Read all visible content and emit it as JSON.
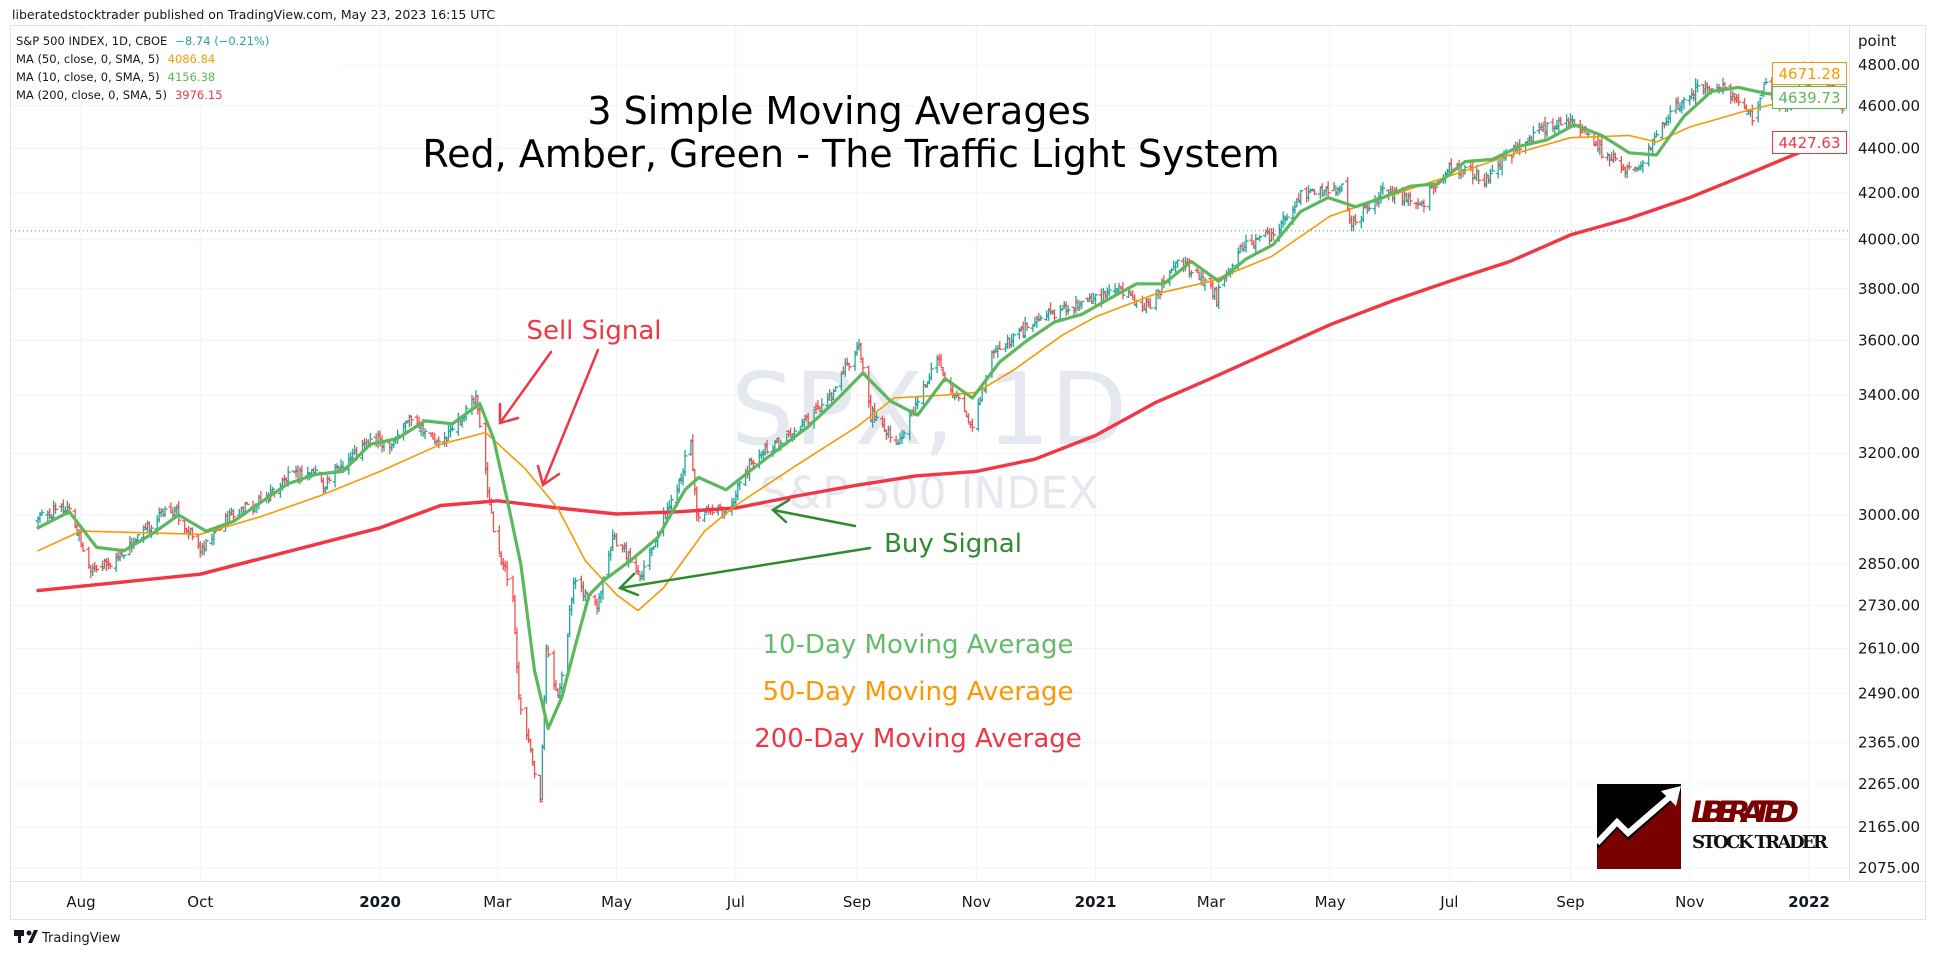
{
  "header": {
    "published": "liberatedstocktrader published on TradingView.com, May 23, 2023 16:15 UTC"
  },
  "legend": [
    {
      "label": "S&P 500 INDEX, 1D, CBOE",
      "value": "−8.74 (−0.21%)",
      "color": "#26a69a"
    },
    {
      "label": "MA (50, close, 0, SMA, 5)",
      "value": "4086.84",
      "color": "#ff9800"
    },
    {
      "label": "MA (10, close, 0, SMA, 5)",
      "value": "4156.38",
      "color": "#5cb85c"
    },
    {
      "label": "MA (200, close, 0, SMA, 5)",
      "value": "3976.15",
      "color": "#f23645"
    }
  ],
  "watermark": {
    "symbol": "SPX, 1D",
    "name": "S&P 500 INDEX"
  },
  "footer": {
    "brand": "TradingView"
  },
  "logo": {
    "line1": "LIBERATED",
    "line2": "STOCK TRADER"
  },
  "price_axis": {
    "unit": "point"
  },
  "price_tags": [
    {
      "value": "4671.28",
      "color": "#ff9800"
    },
    {
      "value": "4639.73",
      "color": "#5cb85c"
    },
    {
      "value": "4427.63",
      "color": "#f23645"
    }
  ],
  "chart_data": {
    "type": "ohlc",
    "title": [
      "3 Simple Moving Averages",
      "Red, Amber, Green - The Traffic Light System"
    ],
    "y_scale": "log",
    "ylim": [
      2030,
      4900
    ],
    "grid": true,
    "y_ticks": [
      4800,
      4600,
      4400,
      4200,
      4000,
      3800,
      3600,
      3400,
      3200,
      3000,
      2850,
      2730,
      2610,
      2490,
      2365,
      2265,
      2165,
      2075
    ],
    "y_tick_labels": [
      "4800.00",
      "4600.00",
      "4400.00",
      "4200.00",
      "4000.00",
      "3800.00",
      "3600.00",
      "3400.00",
      "3200.00",
      "3000.00",
      "2850.00",
      "2730.00",
      "2610.00",
      "2490.00",
      "2365.00",
      "2265.00",
      "2165.00",
      "2075.00"
    ],
    "x_range": [
      "2019-07-10",
      "2022-01-18"
    ],
    "x_ticks": [
      {
        "date": "2019-08-01",
        "label": "Aug",
        "year": false
      },
      {
        "date": "2019-10-01",
        "label": "Oct",
        "year": false
      },
      {
        "date": "2020-01-01",
        "label": "2020",
        "year": true
      },
      {
        "date": "2020-03-01",
        "label": "Mar",
        "year": false
      },
      {
        "date": "2020-05-01",
        "label": "May",
        "year": false
      },
      {
        "date": "2020-07-01",
        "label": "Jul",
        "year": false
      },
      {
        "date": "2020-09-01",
        "label": "Sep",
        "year": false
      },
      {
        "date": "2020-11-01",
        "label": "Nov",
        "year": false
      },
      {
        "date": "2021-01-01",
        "label": "2021",
        "year": true
      },
      {
        "date": "2021-03-01",
        "label": "Mar",
        "year": false
      },
      {
        "date": "2021-05-01",
        "label": "May",
        "year": false
      },
      {
        "date": "2021-07-01",
        "label": "Jul",
        "year": false
      },
      {
        "date": "2021-09-01",
        "label": "Sep",
        "year": false
      },
      {
        "date": "2021-11-01",
        "label": "Nov",
        "year": false
      },
      {
        "date": "2022-01-01",
        "label": "2022",
        "year": true
      }
    ],
    "close": [
      [
        "2019-07-10",
        2993
      ],
      [
        "2019-07-26",
        3025
      ],
      [
        "2019-08-05",
        2844
      ],
      [
        "2019-08-15",
        2847
      ],
      [
        "2019-08-30",
        2926
      ],
      [
        "2019-09-12",
        3009
      ],
      [
        "2019-09-19",
        3006
      ],
      [
        "2019-10-02",
        2887
      ],
      [
        "2019-10-15",
        2995
      ],
      [
        "2019-10-31",
        3037
      ],
      [
        "2019-11-15",
        3120
      ],
      [
        "2019-11-29",
        3141
      ],
      [
        "2019-12-03",
        3093
      ],
      [
        "2019-12-13",
        3169
      ],
      [
        "2019-12-27",
        3240
      ],
      [
        "2020-01-07",
        3237
      ],
      [
        "2020-01-17",
        3330
      ],
      [
        "2020-01-31",
        3225
      ],
      [
        "2020-02-19",
        3386
      ],
      [
        "2020-02-28",
        2954
      ],
      [
        "2020-03-09",
        2746
      ],
      [
        "2020-03-12",
        2480
      ],
      [
        "2020-03-16",
        2386
      ],
      [
        "2020-03-23",
        2237
      ],
      [
        "2020-03-26",
        2630
      ],
      [
        "2020-04-01",
        2470
      ],
      [
        "2020-04-09",
        2790
      ],
      [
        "2020-04-21",
        2736
      ],
      [
        "2020-04-29",
        2939
      ],
      [
        "2020-05-13",
        2820
      ],
      [
        "2020-05-29",
        3044
      ],
      [
        "2020-06-08",
        3232
      ],
      [
        "2020-06-11",
        3002
      ],
      [
        "2020-06-26",
        3009
      ],
      [
        "2020-07-10",
        3185
      ],
      [
        "2020-07-31",
        3271
      ],
      [
        "2020-08-18",
        3389
      ],
      [
        "2020-09-02",
        3580
      ],
      [
        "2020-09-08",
        3332
      ],
      [
        "2020-09-23",
        3237
      ],
      [
        "2020-10-12",
        3534
      ],
      [
        "2020-10-30",
        3270
      ],
      [
        "2020-11-09",
        3550
      ],
      [
        "2020-11-24",
        3635
      ],
      [
        "2020-12-08",
        3702
      ],
      [
        "2020-12-31",
        3756
      ],
      [
        "2021-01-14",
        3795
      ],
      [
        "2021-01-29",
        3714
      ],
      [
        "2021-02-12",
        3934
      ],
      [
        "2021-03-04",
        3768
      ],
      [
        "2021-03-17",
        3974
      ],
      [
        "2021-04-01",
        4019
      ],
      [
        "2021-04-16",
        4185
      ],
      [
        "2021-05-07",
        4232
      ],
      [
        "2021-05-12",
        4063
      ],
      [
        "2021-05-28",
        4204
      ],
      [
        "2021-06-18",
        4166
      ],
      [
        "2021-07-01",
        4320
      ],
      [
        "2021-07-19",
        4258
      ],
      [
        "2021-08-02",
        4387
      ],
      [
        "2021-08-16",
        4479
      ],
      [
        "2021-09-02",
        4537
      ],
      [
        "2021-09-20",
        4358
      ],
      [
        "2021-10-04",
        4300
      ],
      [
        "2021-10-21",
        4549
      ],
      [
        "2021-11-05",
        4697
      ],
      [
        "2021-11-18",
        4704
      ],
      [
        "2021-11-30",
        4567
      ],
      [
        "2021-12-03",
        4538
      ],
      [
        "2021-12-10",
        4712
      ],
      [
        "2021-12-20",
        4568
      ],
      [
        "2021-12-29",
        4793
      ],
      [
        "2022-01-03",
        4796
      ],
      [
        "2022-01-12",
        4726
      ],
      [
        "2022-01-18",
        4577
      ]
    ],
    "series": [
      {
        "name": "MA (10, close, 0, SMA, 5)",
        "color": "#5cb85c",
        "points": [
          [
            "2019-07-10",
            2960
          ],
          [
            "2019-07-26",
            3010
          ],
          [
            "2019-08-09",
            2900
          ],
          [
            "2019-08-23",
            2890
          ],
          [
            "2019-09-06",
            2940
          ],
          [
            "2019-09-20",
            3000
          ],
          [
            "2019-10-04",
            2950
          ],
          [
            "2019-10-18",
            2980
          ],
          [
            "2019-11-01",
            3040
          ],
          [
            "2019-11-15",
            3100
          ],
          [
            "2019-11-29",
            3130
          ],
          [
            "2019-12-13",
            3140
          ],
          [
            "2019-12-27",
            3230
          ],
          [
            "2020-01-10",
            3250
          ],
          [
            "2020-01-24",
            3310
          ],
          [
            "2020-02-07",
            3300
          ],
          [
            "2020-02-21",
            3370
          ],
          [
            "2020-02-28",
            3250
          ],
          [
            "2020-03-06",
            3050
          ],
          [
            "2020-03-13",
            2850
          ],
          [
            "2020-03-20",
            2550
          ],
          [
            "2020-03-27",
            2400
          ],
          [
            "2020-04-03",
            2480
          ],
          [
            "2020-04-10",
            2620
          ],
          [
            "2020-04-17",
            2760
          ],
          [
            "2020-04-24",
            2800
          ],
          [
            "2020-05-08",
            2860
          ],
          [
            "2020-05-22",
            2930
          ],
          [
            "2020-06-05",
            3080
          ],
          [
            "2020-06-12",
            3120
          ],
          [
            "2020-06-26",
            3080
          ],
          [
            "2020-07-10",
            3150
          ],
          [
            "2020-07-24",
            3220
          ],
          [
            "2020-08-07",
            3290
          ],
          [
            "2020-08-21",
            3380
          ],
          [
            "2020-09-04",
            3480
          ],
          [
            "2020-09-18",
            3380
          ],
          [
            "2020-10-02",
            3330
          ],
          [
            "2020-10-16",
            3460
          ],
          [
            "2020-10-30",
            3390
          ],
          [
            "2020-11-13",
            3520
          ],
          [
            "2020-11-27",
            3600
          ],
          [
            "2020-12-11",
            3670
          ],
          [
            "2020-12-25",
            3700
          ],
          [
            "2021-01-08",
            3760
          ],
          [
            "2021-01-22",
            3820
          ],
          [
            "2021-02-05",
            3820
          ],
          [
            "2021-02-19",
            3910
          ],
          [
            "2021-03-05",
            3830
          ],
          [
            "2021-03-19",
            3920
          ],
          [
            "2021-04-02",
            3980
          ],
          [
            "2021-04-16",
            4120
          ],
          [
            "2021-04-30",
            4180
          ],
          [
            "2021-05-14",
            4140
          ],
          [
            "2021-05-28",
            4180
          ],
          [
            "2021-06-11",
            4230
          ],
          [
            "2021-06-25",
            4240
          ],
          [
            "2021-07-09",
            4340
          ],
          [
            "2021-07-23",
            4350
          ],
          [
            "2021-08-06",
            4410
          ],
          [
            "2021-08-20",
            4440
          ],
          [
            "2021-09-03",
            4510
          ],
          [
            "2021-09-17",
            4460
          ],
          [
            "2021-10-01",
            4380
          ],
          [
            "2021-10-15",
            4370
          ],
          [
            "2021-10-29",
            4550
          ],
          [
            "2021-11-12",
            4670
          ],
          [
            "2021-11-26",
            4690
          ],
          [
            "2021-12-10",
            4660
          ],
          [
            "2021-12-24",
            4650
          ],
          [
            "2022-01-07",
            4740
          ],
          [
            "2022-01-18",
            4640
          ]
        ]
      },
      {
        "name": "MA (50, close, 0, SMA, 5)",
        "color": "#ff9800",
        "points": [
          [
            "2019-07-10",
            2890
          ],
          [
            "2019-08-01",
            2950
          ],
          [
            "2019-09-01",
            2945
          ],
          [
            "2019-10-01",
            2940
          ],
          [
            "2019-11-01",
            2995
          ],
          [
            "2019-12-01",
            3060
          ],
          [
            "2020-01-01",
            3140
          ],
          [
            "2020-02-01",
            3230
          ],
          [
            "2020-02-24",
            3270
          ],
          [
            "2020-03-15",
            3150
          ],
          [
            "2020-04-01",
            3020
          ],
          [
            "2020-04-15",
            2860
          ],
          [
            "2020-05-01",
            2760
          ],
          [
            "2020-05-12",
            2715
          ],
          [
            "2020-05-25",
            2780
          ],
          [
            "2020-06-15",
            2950
          ],
          [
            "2020-07-01",
            3030
          ],
          [
            "2020-08-01",
            3160
          ],
          [
            "2020-09-01",
            3290
          ],
          [
            "2020-09-20",
            3390
          ],
          [
            "2020-10-15",
            3400
          ],
          [
            "2020-11-01",
            3410
          ],
          [
            "2020-11-20",
            3490
          ],
          [
            "2020-12-15",
            3620
          ],
          [
            "2021-01-01",
            3690
          ],
          [
            "2021-02-01",
            3780
          ],
          [
            "2021-03-01",
            3830
          ],
          [
            "2021-04-01",
            3930
          ],
          [
            "2021-05-01",
            4100
          ],
          [
            "2021-06-01",
            4190
          ],
          [
            "2021-07-01",
            4275
          ],
          [
            "2021-08-01",
            4370
          ],
          [
            "2021-09-01",
            4450
          ],
          [
            "2021-10-01",
            4460
          ],
          [
            "2021-10-15",
            4430
          ],
          [
            "2021-11-01",
            4500
          ],
          [
            "2021-12-01",
            4580
          ],
          [
            "2022-01-01",
            4650
          ],
          [
            "2022-01-18",
            4671.28
          ]
        ]
      },
      {
        "name": "MA (200, close, 0, SMA, 5)",
        "color": "#f23645",
        "points": [
          [
            "2019-07-10",
            2772
          ],
          [
            "2019-10-01",
            2820
          ],
          [
            "2020-01-01",
            2960
          ],
          [
            "2020-02-01",
            3030
          ],
          [
            "2020-03-01",
            3045
          ],
          [
            "2020-04-01",
            3022
          ],
          [
            "2020-05-01",
            3003
          ],
          [
            "2020-06-01",
            3010
          ],
          [
            "2020-07-01",
            3022
          ],
          [
            "2020-08-01",
            3060
          ],
          [
            "2020-09-01",
            3095
          ],
          [
            "2020-10-01",
            3125
          ],
          [
            "2020-11-01",
            3140
          ],
          [
            "2020-12-01",
            3180
          ],
          [
            "2021-01-01",
            3260
          ],
          [
            "2021-02-01",
            3375
          ],
          [
            "2021-03-01",
            3460
          ],
          [
            "2021-04-01",
            3560
          ],
          [
            "2021-05-01",
            3660
          ],
          [
            "2021-06-01",
            3750
          ],
          [
            "2021-07-01",
            3830
          ],
          [
            "2021-08-01",
            3910
          ],
          [
            "2021-09-01",
            4020
          ],
          [
            "2021-10-01",
            4090
          ],
          [
            "2021-11-01",
            4180
          ],
          [
            "2021-12-01",
            4285
          ],
          [
            "2022-01-01",
            4400
          ],
          [
            "2022-01-18",
            4427.63
          ]
        ]
      }
    ],
    "reference_line": 4037,
    "annotations": {
      "sell": {
        "text": "Sell Signal",
        "color": "#f23645"
      },
      "buy": {
        "text": "Buy Signal",
        "color": "#2e8b2e"
      },
      "key": [
        {
          "text": "10-Day Moving Average",
          "color": "#66bb6a"
        },
        {
          "text": "50-Day Moving Average",
          "color": "#ff9800"
        },
        {
          "text": "200-Day Moving Average",
          "color": "#f23645"
        }
      ]
    }
  }
}
